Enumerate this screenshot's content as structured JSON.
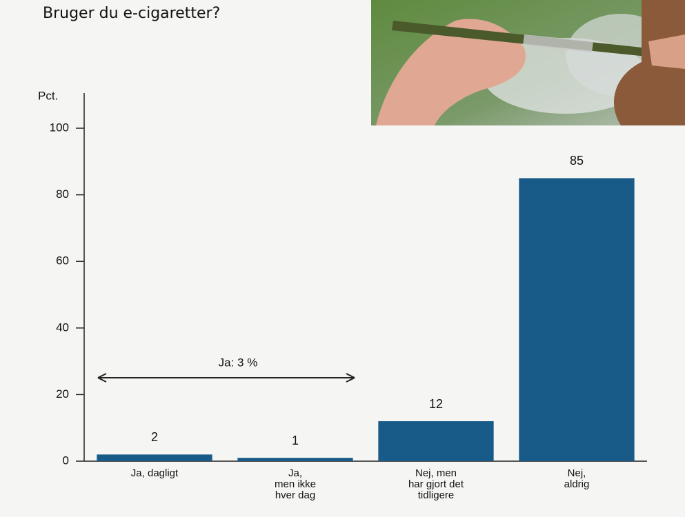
{
  "chart_data": {
    "type": "bar",
    "title": "Bruger du e-cigaretter?",
    "ylabel": "Pct.",
    "categories": [
      "Ja, dagligt",
      "Ja,\nmen ikke\nhver dag",
      "Nej, men\nhar gjort det\ntidligere",
      "Nej,\naldrig"
    ],
    "values": [
      2,
      1,
      12,
      85
    ],
    "color": "#195b88",
    "ylim": [
      0,
      100
    ],
    "yticks": [
      0,
      20,
      40,
      60,
      80,
      100
    ],
    "grid": false,
    "annotation": "Ja: 3 %"
  }
}
